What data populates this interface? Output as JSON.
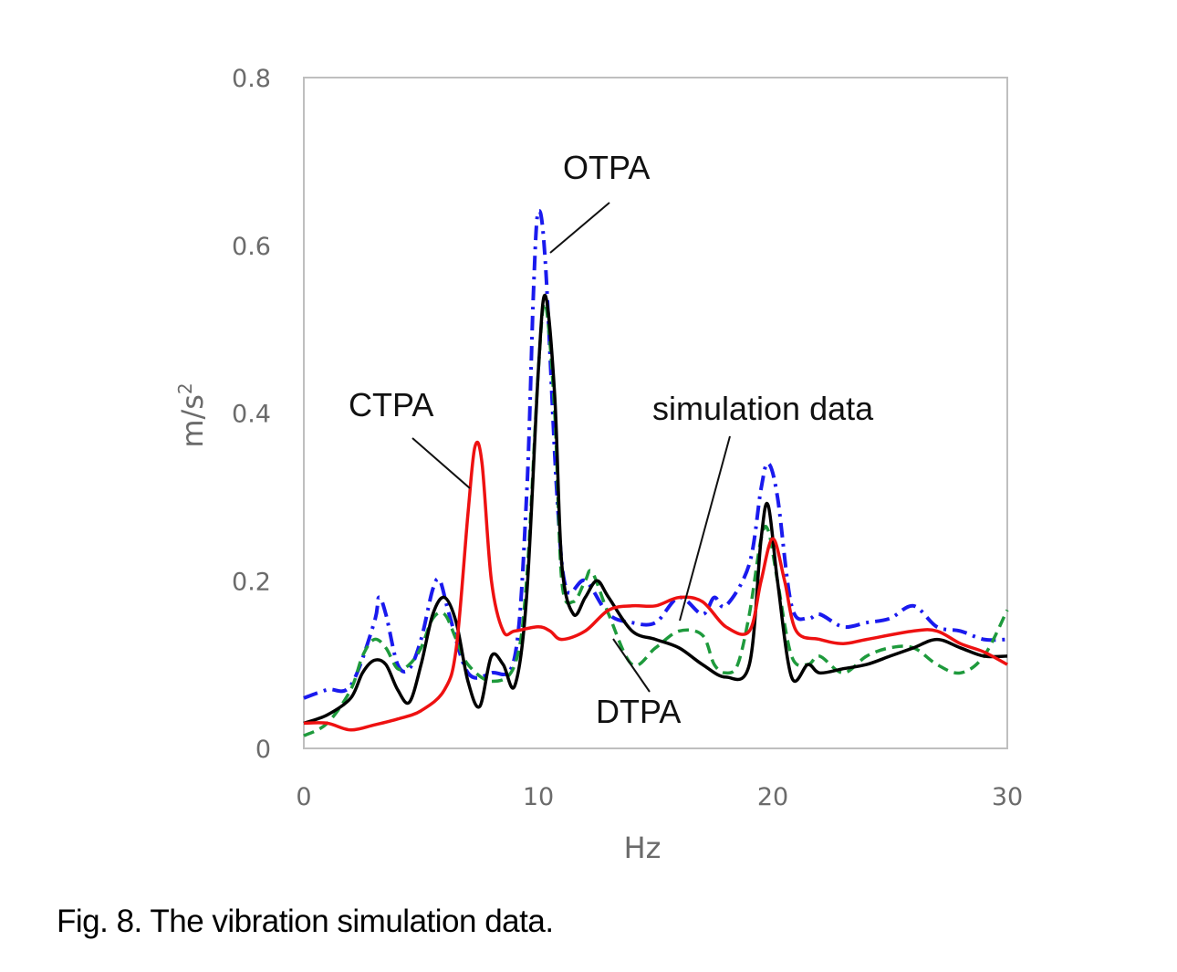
{
  "chart_data": {
    "type": "line",
    "xlabel": "Hz",
    "ylabel": "m/s",
    "ylabel_superscript": "2",
    "xlim": [
      0,
      30
    ],
    "ylim": [
      0,
      0.8
    ],
    "x_ticks": [
      "0",
      "10",
      "20",
      "30"
    ],
    "y_ticks": [
      "0",
      "0.2",
      "0.4",
      "0.6",
      "0.8"
    ],
    "grid": false,
    "series": [
      {
        "name": "OTPA",
        "color": "#1a1aee",
        "style": "dashdot",
        "points": [
          [
            0,
            0.06
          ],
          [
            1,
            0.07
          ],
          [
            2,
            0.075
          ],
          [
            3,
            0.15
          ],
          [
            3.2,
            0.18
          ],
          [
            3.5,
            0.16
          ],
          [
            4,
            0.1
          ],
          [
            4.5,
            0.095
          ],
          [
            5,
            0.13
          ],
          [
            5.5,
            0.19
          ],
          [
            5.8,
            0.2
          ],
          [
            6.2,
            0.16
          ],
          [
            7,
            0.09
          ],
          [
            8,
            0.09
          ],
          [
            9,
            0.11
          ],
          [
            9.5,
            0.3
          ],
          [
            9.8,
            0.55
          ],
          [
            10,
            0.64
          ],
          [
            10.3,
            0.58
          ],
          [
            10.8,
            0.3
          ],
          [
            11.2,
            0.19
          ],
          [
            12,
            0.2
          ],
          [
            13,
            0.16
          ],
          [
            14,
            0.15
          ],
          [
            15,
            0.15
          ],
          [
            16,
            0.18
          ],
          [
            17,
            0.16
          ],
          [
            17.5,
            0.18
          ],
          [
            18,
            0.17
          ],
          [
            19,
            0.22
          ],
          [
            19.5,
            0.31
          ],
          [
            19.8,
            0.34
          ],
          [
            20.2,
            0.3
          ],
          [
            20.8,
            0.17
          ],
          [
            21.5,
            0.155
          ],
          [
            22,
            0.16
          ],
          [
            23,
            0.145
          ],
          [
            24,
            0.15
          ],
          [
            25,
            0.155
          ],
          [
            26,
            0.17
          ],
          [
            27,
            0.145
          ],
          [
            28,
            0.14
          ],
          [
            29,
            0.13
          ],
          [
            30,
            0.13
          ]
        ]
      },
      {
        "name": "DTPA",
        "color": "#1e9a3c",
        "style": "dashed",
        "points": [
          [
            0,
            0.015
          ],
          [
            1,
            0.03
          ],
          [
            2,
            0.07
          ],
          [
            2.5,
            0.11
          ],
          [
            3,
            0.13
          ],
          [
            3.5,
            0.12
          ],
          [
            4,
            0.095
          ],
          [
            4.5,
            0.1
          ],
          [
            5,
            0.12
          ],
          [
            5.5,
            0.155
          ],
          [
            6,
            0.16
          ],
          [
            6.5,
            0.13
          ],
          [
            7,
            0.1
          ],
          [
            8,
            0.08
          ],
          [
            9,
            0.1
          ],
          [
            9.5,
            0.2
          ],
          [
            10,
            0.45
          ],
          [
            10.3,
            0.53
          ],
          [
            10.7,
            0.4
          ],
          [
            11,
            0.2
          ],
          [
            11.5,
            0.175
          ],
          [
            12,
            0.2
          ],
          [
            12.3,
            0.21
          ],
          [
            13,
            0.16
          ],
          [
            14,
            0.1
          ],
          [
            15,
            0.12
          ],
          [
            16,
            0.14
          ],
          [
            17,
            0.135
          ],
          [
            17.5,
            0.1
          ],
          [
            18,
            0.09
          ],
          [
            18.5,
            0.1
          ],
          [
            19,
            0.16
          ],
          [
            19.5,
            0.25
          ],
          [
            19.8,
            0.26
          ],
          [
            20.2,
            0.2
          ],
          [
            20.8,
            0.11
          ],
          [
            21.5,
            0.1
          ],
          [
            22,
            0.11
          ],
          [
            23,
            0.09
          ],
          [
            24,
            0.11
          ],
          [
            25,
            0.12
          ],
          [
            26,
            0.12
          ],
          [
            27,
            0.1
          ],
          [
            28,
            0.09
          ],
          [
            29,
            0.11
          ],
          [
            30,
            0.165
          ]
        ]
      },
      {
        "name": "simulation data",
        "color": "#000000",
        "style": "solid",
        "points": [
          [
            0,
            0.03
          ],
          [
            1,
            0.04
          ],
          [
            2,
            0.06
          ],
          [
            2.5,
            0.09
          ],
          [
            3,
            0.105
          ],
          [
            3.5,
            0.1
          ],
          [
            4,
            0.07
          ],
          [
            4.5,
            0.055
          ],
          [
            5,
            0.1
          ],
          [
            5.5,
            0.16
          ],
          [
            6,
            0.18
          ],
          [
            6.5,
            0.15
          ],
          [
            7,
            0.08
          ],
          [
            7.5,
            0.05
          ],
          [
            8,
            0.11
          ],
          [
            8.5,
            0.1
          ],
          [
            9,
            0.075
          ],
          [
            9.5,
            0.18
          ],
          [
            10,
            0.45
          ],
          [
            10.3,
            0.54
          ],
          [
            10.7,
            0.42
          ],
          [
            11,
            0.22
          ],
          [
            11.5,
            0.16
          ],
          [
            12,
            0.18
          ],
          [
            12.5,
            0.2
          ],
          [
            13,
            0.18
          ],
          [
            14,
            0.14
          ],
          [
            15,
            0.13
          ],
          [
            16,
            0.12
          ],
          [
            17,
            0.1
          ],
          [
            18,
            0.085
          ],
          [
            19,
            0.1
          ],
          [
            19.5,
            0.25
          ],
          [
            19.8,
            0.29
          ],
          [
            20.2,
            0.2
          ],
          [
            20.8,
            0.085
          ],
          [
            21.5,
            0.1
          ],
          [
            22,
            0.09
          ],
          [
            23,
            0.095
          ],
          [
            24,
            0.1
          ],
          [
            25,
            0.11
          ],
          [
            26,
            0.12
          ],
          [
            27,
            0.13
          ],
          [
            28,
            0.12
          ],
          [
            29,
            0.11
          ],
          [
            30,
            0.11
          ]
        ]
      },
      {
        "name": "CTPA",
        "color": "#ee1111",
        "style": "solid",
        "points": [
          [
            0,
            0.03
          ],
          [
            1,
            0.03
          ],
          [
            2,
            0.022
          ],
          [
            3,
            0.028
          ],
          [
            4,
            0.035
          ],
          [
            5,
            0.045
          ],
          [
            6,
            0.07
          ],
          [
            6.5,
            0.12
          ],
          [
            7,
            0.28
          ],
          [
            7.3,
            0.36
          ],
          [
            7.6,
            0.34
          ],
          [
            8,
            0.2
          ],
          [
            8.5,
            0.14
          ],
          [
            9,
            0.14
          ],
          [
            10,
            0.145
          ],
          [
            10.5,
            0.14
          ],
          [
            11,
            0.13
          ],
          [
            12,
            0.14
          ],
          [
            13,
            0.165
          ],
          [
            14,
            0.17
          ],
          [
            15,
            0.17
          ],
          [
            16,
            0.18
          ],
          [
            17,
            0.175
          ],
          [
            18,
            0.145
          ],
          [
            19,
            0.14
          ],
          [
            19.5,
            0.2
          ],
          [
            20,
            0.25
          ],
          [
            20.5,
            0.2
          ],
          [
            21,
            0.14
          ],
          [
            22,
            0.13
          ],
          [
            23,
            0.125
          ],
          [
            24,
            0.13
          ],
          [
            26,
            0.14
          ],
          [
            27,
            0.14
          ],
          [
            28,
            0.125
          ],
          [
            29,
            0.115
          ],
          [
            30,
            0.1
          ]
        ]
      }
    ],
    "annotations": [
      {
        "text": "OTPA",
        "series": "OTPA"
      },
      {
        "text": "CTPA",
        "series": "CTPA"
      },
      {
        "text": "simulation data",
        "series": "simulation data"
      },
      {
        "text": "DTPA",
        "series": "DTPA"
      }
    ]
  },
  "caption": "Fig. 8. The vibration simulation data."
}
